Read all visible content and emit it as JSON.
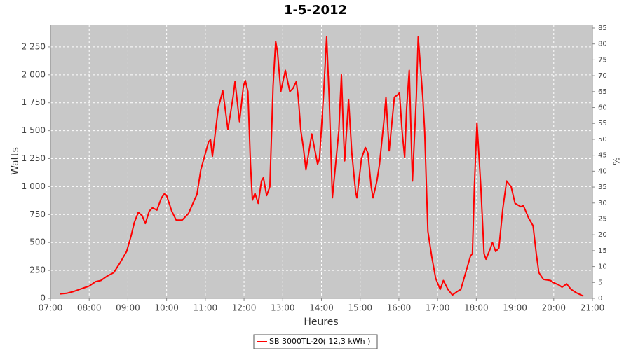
{
  "chart_data": {
    "type": "line",
    "title": "1-5-2012",
    "xlabel": "Heures",
    "ylabel": "Watts",
    "y2label": "%",
    "xlim": [
      "07:00",
      "21:00"
    ],
    "xticks": [
      "07:00",
      "08:00",
      "09:00",
      "10:00",
      "11:00",
      "12:00",
      "13:00",
      "14:00",
      "15:00",
      "16:00",
      "17:00",
      "18:00",
      "19:00",
      "20:00",
      "21:00"
    ],
    "ylim": [
      0,
      2450
    ],
    "yticks": [
      0,
      250,
      500,
      750,
      {
        "value": 1000,
        "label": "1 000"
      },
      {
        "value": 1250,
        "label": "1 250"
      },
      {
        "value": 1500,
        "label": "1 500"
      },
      {
        "value": 1750,
        "label": "1 750"
      },
      {
        "value": 2000,
        "label": "2 000"
      },
      {
        "value": 2250,
        "label": "2 250"
      }
    ],
    "y2lim": [
      0,
      86.1
    ],
    "y2ticks": [
      0,
      5,
      10,
      15,
      20,
      25,
      30,
      35,
      40,
      45,
      50,
      55,
      60,
      65,
      70,
      75,
      80,
      85
    ],
    "grid": true,
    "legend": "bottom",
    "x": [
      "07:15",
      "07:25",
      "07:35",
      "07:45",
      "07:55",
      "08:00",
      "08:10",
      "08:18",
      "08:28",
      "08:38",
      "08:48",
      "08:58",
      "09:05",
      "09:10",
      "09:16",
      "09:22",
      "09:27",
      "09:33",
      "09:38",
      "09:45",
      "09:52",
      "09:57",
      "10:00",
      "10:08",
      "10:15",
      "10:24",
      "10:34",
      "10:43",
      "10:47",
      "10:53",
      "11:05",
      "11:08",
      "11:11",
      "11:20",
      "11:27",
      "11:35",
      "11:43",
      "11:46",
      "11:53",
      "11:59",
      "12:02",
      "12:06",
      "12:10",
      "12:13",
      "12:17",
      "12:22",
      "12:27",
      "12:30",
      "12:35",
      "12:40",
      "12:45",
      "12:49",
      "12:52",
      "12:57",
      "13:04",
      "13:11",
      "13:16",
      "13:21",
      "13:24",
      "13:28",
      "13:32",
      "13:36",
      "13:45",
      "13:54",
      "13:57",
      "14:03",
      "14:08",
      "14:12",
      "14:17",
      "14:22",
      "14:27",
      "14:31",
      "14:34",
      "14:36",
      "14:42",
      "14:47",
      "14:53",
      "14:55",
      "15:02",
      "15:08",
      "15:12",
      "15:17",
      "15:20",
      "15:26",
      "15:30",
      "15:37",
      "15:40",
      "15:45",
      "15:53",
      "15:58",
      "16:01",
      "16:05",
      "16:09",
      "16:12",
      "16:16",
      "16:21",
      "16:27",
      "16:30",
      "16:37",
      "16:40",
      "16:45",
      "16:51",
      "16:57",
      "17:04",
      "17:09",
      "17:16",
      "17:23",
      "17:30",
      "17:36",
      "17:42",
      "17:51",
      "17:54",
      "17:57",
      "18:01",
      "18:07",
      "18:12",
      "18:15",
      "18:22",
      "18:25",
      "18:30",
      "18:35",
      "18:41",
      "18:47",
      "18:54",
      "19:00",
      "19:09",
      "19:13",
      "19:21",
      "19:28",
      "19:33",
      "19:37",
      "19:44",
      "19:55",
      "20:00",
      "20:08",
      "20:13",
      "20:20",
      "20:27",
      "20:35",
      "20:46"
    ],
    "series": [
      {
        "name": "SB 3000TL-20( 12,3 kWh )",
        "color": "#ff0000",
        "values": [
          40,
          45,
          60,
          80,
          100,
          110,
          150,
          160,
          200,
          230,
          320,
          420,
          560,
          680,
          770,
          740,
          670,
          780,
          810,
          790,
          900,
          940,
          920,
          780,
          700,
          700,
          760,
          880,
          930,
          1150,
          1400,
          1420,
          1270,
          1700,
          1860,
          1510,
          1800,
          1940,
          1580,
          1900,
          1950,
          1850,
          1200,
          880,
          940,
          850,
          1050,
          1080,
          920,
          1000,
          1900,
          2300,
          2200,
          1850,
          2040,
          1850,
          1880,
          1940,
          1800,
          1500,
          1350,
          1150,
          1470,
          1200,
          1250,
          1800,
          2340,
          1800,
          900,
          1200,
          1500,
          2000,
          1500,
          1230,
          1780,
          1300,
          950,
          900,
          1250,
          1350,
          1300,
          1000,
          900,
          1050,
          1200,
          1600,
          1800,
          1320,
          1800,
          1820,
          1840,
          1500,
          1260,
          1700,
          2040,
          1050,
          1800,
          2340,
          1800,
          1500,
          600,
          370,
          180,
          80,
          160,
          80,
          30,
          60,
          80,
          200,
          380,
          400,
          1000,
          1570,
          1000,
          400,
          350,
          450,
          500,
          420,
          450,
          800,
          1050,
          1000,
          850,
          820,
          830,
          720,
          650,
          400,
          230,
          170,
          160,
          140,
          120,
          100,
          130,
          80,
          50,
          20
        ]
      }
    ]
  }
}
